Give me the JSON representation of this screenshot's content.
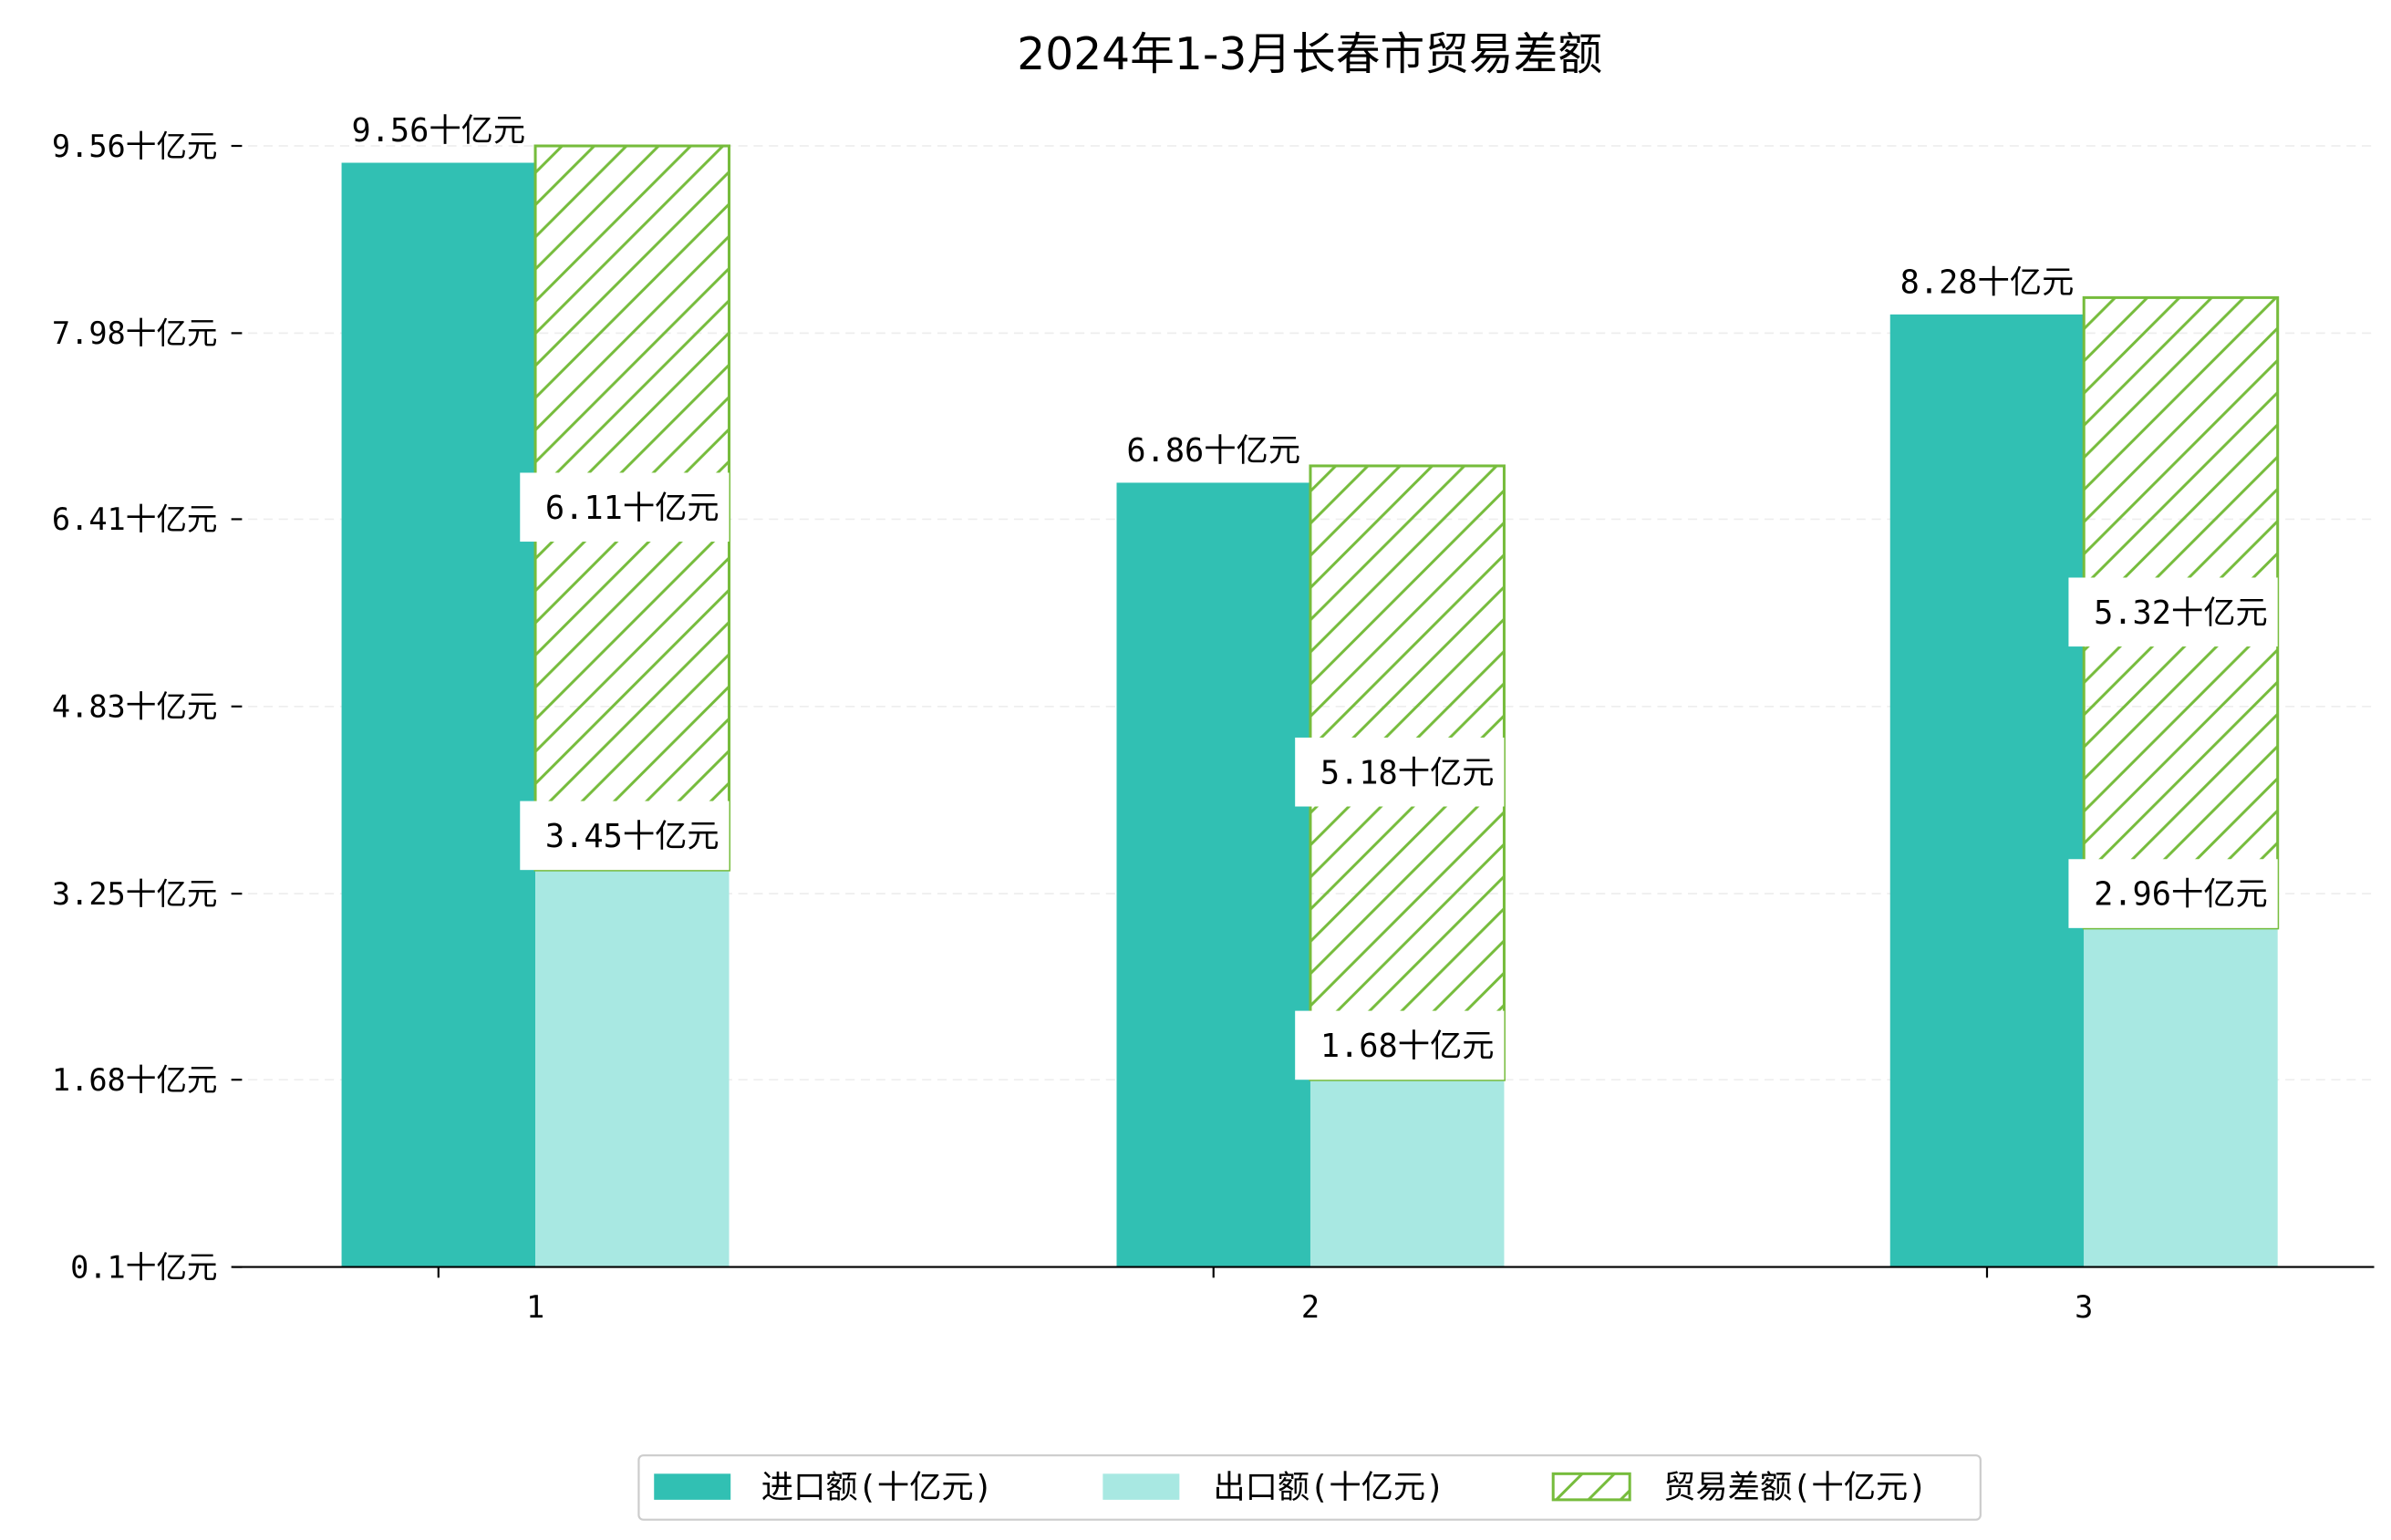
{
  "chart_data": {
    "type": "bar",
    "title": "2024年1-3月长春市贸易差额",
    "categories": [
      "1",
      "2",
      "3"
    ],
    "unit": "十亿元",
    "ytick_labels": [
      "0.1十亿元",
      "1.68十亿元",
      "3.25十亿元",
      "4.83十亿元",
      "6.41十亿元",
      "7.98十亿元",
      "9.56十亿元"
    ],
    "yticks": [
      0.1,
      1.68,
      3.25,
      4.83,
      6.41,
      7.98,
      9.56
    ],
    "ylim": [
      0.1,
      9.56
    ],
    "grid": "horizontal dashed",
    "legend_position": "bottom-center",
    "series": [
      {
        "name": "进口额(十亿元)",
        "values": [
          9.56,
          6.86,
          8.28
        ],
        "color": "#31c0b3",
        "labels": [
          "9.56十亿元",
          "6.86十亿元",
          "8.28十亿元"
        ]
      },
      {
        "name": "出口额(十亿元)",
        "values": [
          3.45,
          1.68,
          2.96
        ],
        "color": "#a8e8e2",
        "labels": [
          "3.45十亿元",
          "1.68十亿元",
          "2.96十亿元"
        ]
      },
      {
        "name": "贸易差额(十亿元)",
        "values": [
          6.11,
          5.18,
          5.32
        ],
        "color": "#76bc3c",
        "stacked_on": "出口额(十亿元)",
        "hatch": "/",
        "labels": [
          "6.11十亿元",
          "5.18十亿元",
          "5.32十亿元"
        ]
      }
    ]
  }
}
